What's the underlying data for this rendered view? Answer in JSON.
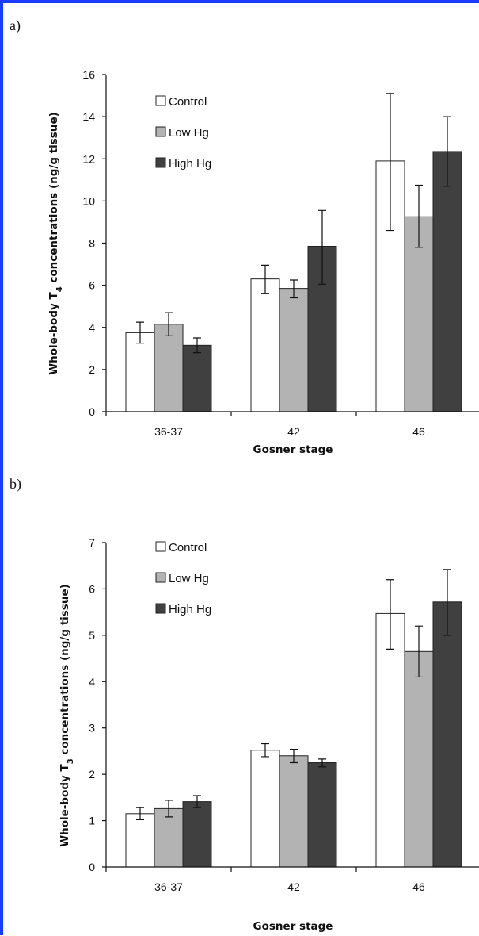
{
  "colors": {
    "frame": "#1a3cff",
    "series": [
      "#ffffff",
      "#b3b3b3",
      "#404040"
    ]
  },
  "chart_data": [
    {
      "panel_label": "a)",
      "type": "bar",
      "categories": [
        "36-37",
        "42",
        "46"
      ],
      "series": [
        {
          "name": "Control",
          "values": [
            3.75,
            6.3,
            11.9
          ],
          "err_low": [
            3.25,
            5.6,
            8.6
          ],
          "err_high": [
            4.25,
            6.95,
            15.1
          ]
        },
        {
          "name": "Low Hg",
          "values": [
            4.15,
            5.85,
            9.25
          ],
          "err_low": [
            3.6,
            5.4,
            7.8
          ],
          "err_high": [
            4.7,
            6.25,
            10.75
          ]
        },
        {
          "name": "High Hg",
          "values": [
            3.15,
            7.85,
            12.35
          ],
          "err_low": [
            2.8,
            6.05,
            10.7
          ],
          "err_high": [
            3.5,
            9.55,
            14.0
          ]
        }
      ],
      "ylabel_prefix": "Whole-body T",
      "ylabel_sub": "4",
      "ylabel_suffix": " concentrations (ng/g tissue)",
      "xlabel": "Gosner stage",
      "ylim": [
        0,
        16
      ],
      "yticks": [
        "0",
        "2",
        "4",
        "6",
        "8",
        "10",
        "12",
        "14",
        "16"
      ],
      "legend_position": "top-left",
      "grid": false
    },
    {
      "panel_label": "b)",
      "type": "bar",
      "categories": [
        "36-37",
        "42",
        "46"
      ],
      "series": [
        {
          "name": "Control",
          "values": [
            1.15,
            2.52,
            5.47
          ],
          "err_low": [
            1.02,
            2.38,
            4.7
          ],
          "err_high": [
            1.28,
            2.66,
            6.2
          ]
        },
        {
          "name": "Low Hg",
          "values": [
            1.26,
            2.4,
            4.65
          ],
          "err_low": [
            1.08,
            2.25,
            4.1
          ],
          "err_high": [
            1.44,
            2.54,
            5.2
          ]
        },
        {
          "name": "High Hg",
          "values": [
            1.41,
            2.25,
            5.72
          ],
          "err_low": [
            1.28,
            2.16,
            5.0
          ],
          "err_high": [
            1.54,
            2.33,
            6.42
          ]
        }
      ],
      "ylabel_prefix": "Whole-body T",
      "ylabel_sub": "3",
      "ylabel_suffix": " concentrations (ng/g tissue)",
      "xlabel": "Gosner stage",
      "ylim": [
        0,
        7
      ],
      "yticks": [
        "0",
        "1",
        "2",
        "3",
        "4",
        "5",
        "6",
        "7"
      ],
      "legend_position": "top-left",
      "grid": false
    }
  ]
}
